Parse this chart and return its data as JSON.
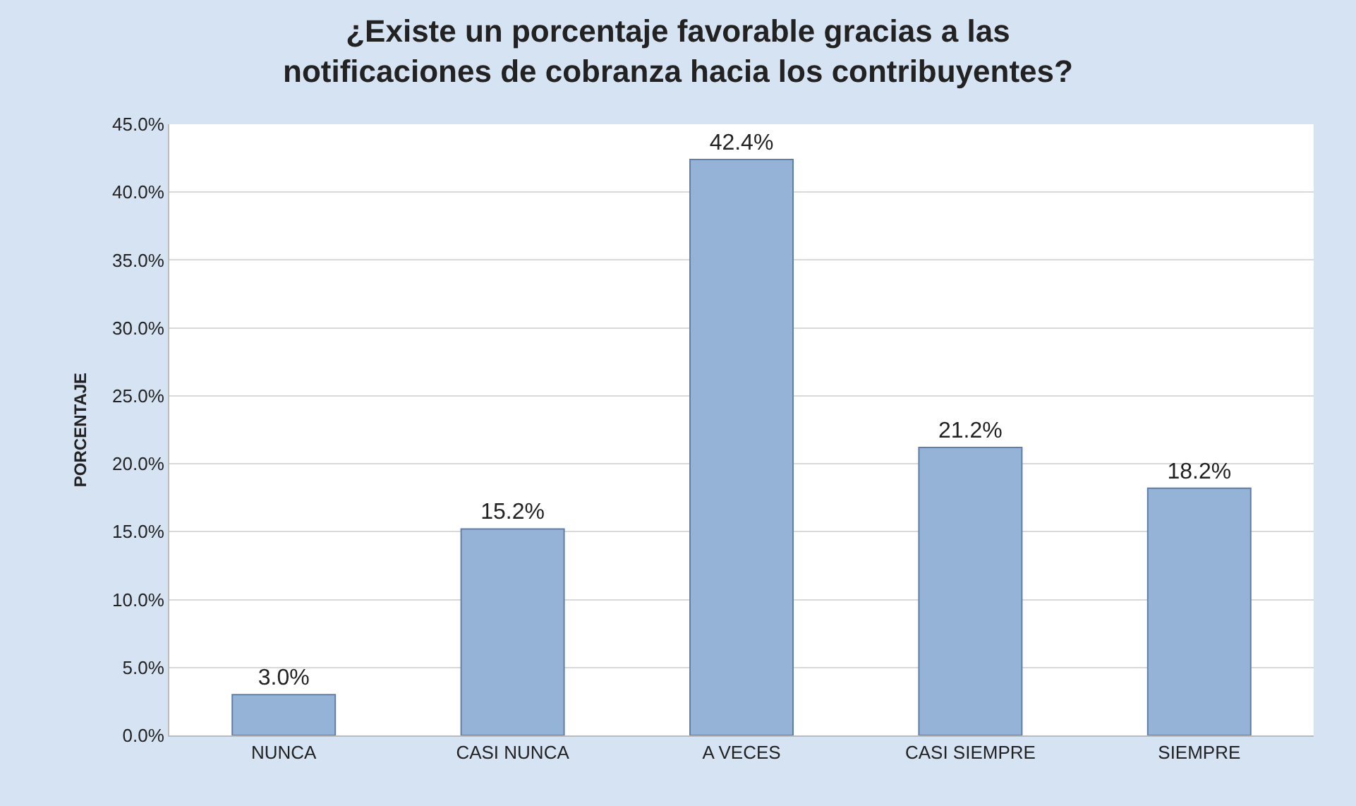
{
  "chart_data": {
    "type": "bar",
    "title": "¿Existe un porcentaje favorable gracias a las\nnotificaciones de cobranza hacia los contribuyentes?",
    "ylabel": "PORCENTAJE",
    "categories": [
      "NUNCA",
      "CASI NUNCA",
      "A VECES",
      "CASI SIEMPRE",
      "SIEMPRE"
    ],
    "values": [
      3.0,
      15.2,
      42.4,
      21.2,
      18.2
    ],
    "value_labels": [
      "3.0%",
      "15.2%",
      "42.4%",
      "21.2%",
      "18.2%"
    ],
    "color": "#95b3d7",
    "ylim": [
      0,
      45
    ],
    "yticks": [
      {
        "value": 0,
        "label": "0.0%"
      },
      {
        "value": 5,
        "label": "5.0%"
      },
      {
        "value": 10,
        "label": "10.0%"
      },
      {
        "value": 15,
        "label": "15.0%"
      },
      {
        "value": 20,
        "label": "20.0%"
      },
      {
        "value": 25,
        "label": "25.0%"
      },
      {
        "value": 30,
        "label": "30.0%"
      },
      {
        "value": 35,
        "label": "35.0%"
      },
      {
        "value": 40,
        "label": "40.0%"
      },
      {
        "value": 45,
        "label": "45.0%"
      }
    ],
    "grid": "y",
    "legend": false
  }
}
